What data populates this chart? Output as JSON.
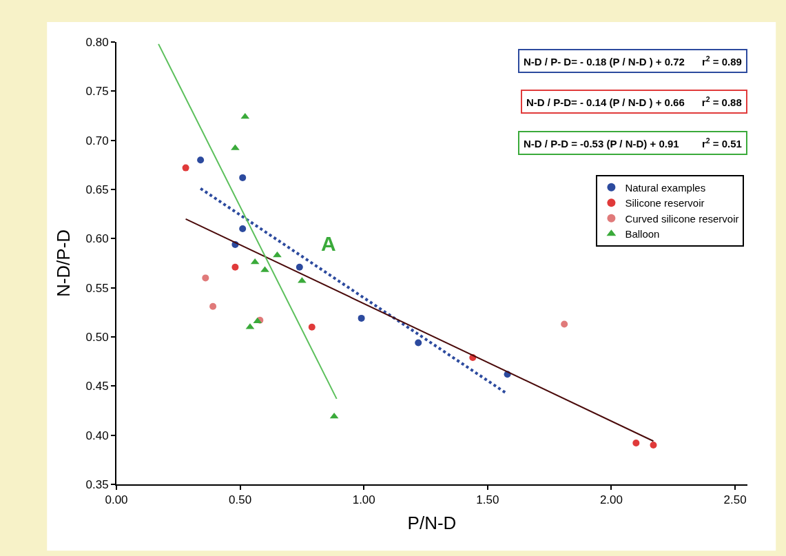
{
  "chart_data": {
    "type": "scatter",
    "xlabel": "P/N-D",
    "ylabel": "N-D/P-D",
    "xlim": [
      0,
      2.55
    ],
    "ylim": [
      0.35,
      0.8
    ],
    "xticks": [
      {
        "value": 0,
        "label": "0.00"
      },
      {
        "value": 0.5,
        "label": "0.50"
      },
      {
        "value": 1,
        "label": "1.00"
      },
      {
        "value": 1.5,
        "label": "1.50"
      },
      {
        "value": 2,
        "label": "2.00"
      },
      {
        "value": 2.5,
        "label": "2.50"
      }
    ],
    "yticks": [
      {
        "value": 0.35,
        "label": "0.35"
      },
      {
        "value": 0.4,
        "label": "0.40"
      },
      {
        "value": 0.45,
        "label": "0.45"
      },
      {
        "value": 0.5,
        "label": "0.50"
      },
      {
        "value": 0.55,
        "label": "0.55"
      },
      {
        "value": 0.6,
        "label": "0.60"
      },
      {
        "value": 0.65,
        "label": "0.65"
      },
      {
        "value": 0.7,
        "label": "0.70"
      },
      {
        "value": 0.75,
        "label": "0.75"
      },
      {
        "value": 0.8,
        "label": "0.80"
      }
    ],
    "legend": "top right",
    "series": [
      {
        "name": "Natural examples",
        "color": "#2c4a9e",
        "marker": "circle",
        "x": [
          0.34,
          0.51,
          0.51,
          0.48,
          0.74,
          0.99,
          1.22,
          1.58
        ],
        "values": [
          0.68,
          0.662,
          0.61,
          0.594,
          0.571,
          0.519,
          0.494,
          0.462
        ]
      },
      {
        "name": "Silicone reservoir",
        "color": "#e03a3a",
        "marker": "circle",
        "x": [
          0.28,
          0.48,
          0.79,
          1.44,
          2.1,
          2.17
        ],
        "values": [
          0.672,
          0.571,
          0.51,
          0.479,
          0.392,
          0.39
        ]
      },
      {
        "name": "Curved silicone reservoir",
        "color": "#e07a7a",
        "marker": "circle",
        "x": [
          0.36,
          0.39,
          0.58,
          1.81
        ],
        "values": [
          0.56,
          0.531,
          0.517,
          0.513
        ]
      },
      {
        "name": "Balloon",
        "color": "#3aaa3a",
        "marker": "triangle",
        "x": [
          0.52,
          0.48,
          0.56,
          0.6,
          0.65,
          0.75,
          0.54,
          0.57,
          0.88
        ],
        "values": [
          0.724,
          0.692,
          0.576,
          0.568,
          0.583,
          0.557,
          0.51,
          0.516,
          0.419
        ]
      },
      {
        "type": "line",
        "color": "#2c4a9e",
        "line_style": "dotted",
        "x": [
          0.34,
          1.58
        ],
        "values": [
          0.651,
          0.442
        ]
      },
      {
        "type": "line",
        "color": "#4a0a0a",
        "line_style": "solid",
        "x": [
          0.28,
          2.17
        ],
        "values": [
          0.62,
          0.394
        ]
      },
      {
        "type": "line",
        "color": "#5cc05c",
        "line_style": "solid",
        "x": [
          0.17,
          0.89
        ],
        "values": [
          0.798,
          0.437
        ]
      }
    ],
    "annotations": [
      "N-D / P- D= - 0.18 (P / N-D ) + 0.72      r$^{2}$ = 0.89",
      "N-D / P-D= - 0.14 (P / N-D ) + 0.66      r$^{2}$ = 0.88",
      "N-D / P-D = -0.53 (P / N-D) + 0.91        r$^{2}$ = 0.51",
      "A"
    ]
  }
}
